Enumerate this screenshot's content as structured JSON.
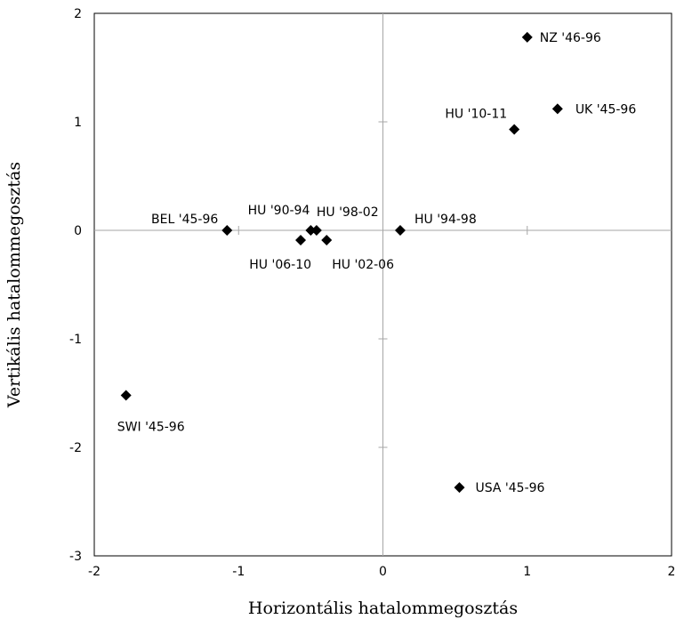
{
  "chart_data": {
    "type": "scatter",
    "xlabel": "Horizontális hatalommegosztás",
    "ylabel": "Vertikális hatalommegosztás",
    "xlim": [
      -2,
      2
    ],
    "ylim": [
      -3,
      2
    ],
    "x_ticks": [
      -2,
      -1,
      0,
      1,
      2
    ],
    "y_ticks": [
      -3,
      -2,
      -1,
      0,
      1,
      2
    ],
    "grid": false,
    "legend": "none",
    "marker": "diamond",
    "marker_color": "#000000",
    "points": [
      {
        "label": "NZ '46-96",
        "x": 1.0,
        "y": 1.78
      },
      {
        "label": "UK '45-96",
        "x": 1.21,
        "y": 1.12
      },
      {
        "label": "HU '10-11",
        "x": 0.91,
        "y": 0.93
      },
      {
        "label": "BEL '45-96",
        "x": -1.08,
        "y": 0.0
      },
      {
        "label": "HU '90-94",
        "x": -0.5,
        "y": 0.0
      },
      {
        "label": "HU '98-02",
        "x": -0.46,
        "y": 0.0
      },
      {
        "label": "HU '06-10",
        "x": -0.57,
        "y": -0.09
      },
      {
        "label": "HU '02-06",
        "x": -0.39,
        "y": -0.09
      },
      {
        "label": "HU '94-98",
        "x": 0.12,
        "y": 0.0
      },
      {
        "label": "SWI '45-96",
        "x": -1.78,
        "y": -1.52
      },
      {
        "label": "USA '45-96",
        "x": 0.53,
        "y": -2.37
      }
    ]
  }
}
